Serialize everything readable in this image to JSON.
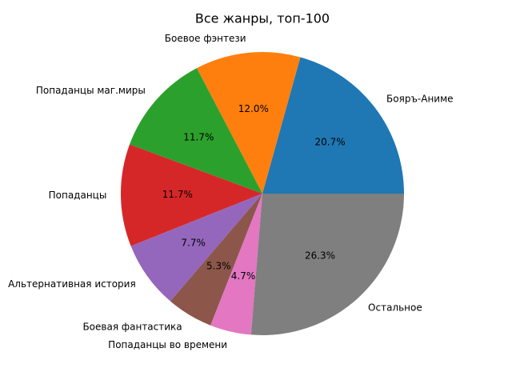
{
  "chart_data": {
    "type": "pie",
    "title": "Все жанры, топ-100",
    "categories": [
      "Бояръ-Аниме",
      "Боевое фэнтези",
      "Попаданцы маг.миры",
      "Попаданцы",
      "Альтернативная история",
      "Боевая фантастика",
      "Попаданцы во времени",
      "Остальное"
    ],
    "values": [
      20.7,
      12.0,
      11.7,
      11.7,
      7.7,
      5.3,
      4.7,
      26.3
    ],
    "value_labels": [
      "20.7%",
      "12.0%",
      "11.7%",
      "11.7%",
      "7.7%",
      "5.3%",
      "4.7%",
      "26.3%"
    ],
    "colors": [
      "#1f77b4",
      "#ff7f0e",
      "#2ca02c",
      "#d62728",
      "#9467bd",
      "#8c564b",
      "#e377c2",
      "#7f7f7f"
    ]
  }
}
